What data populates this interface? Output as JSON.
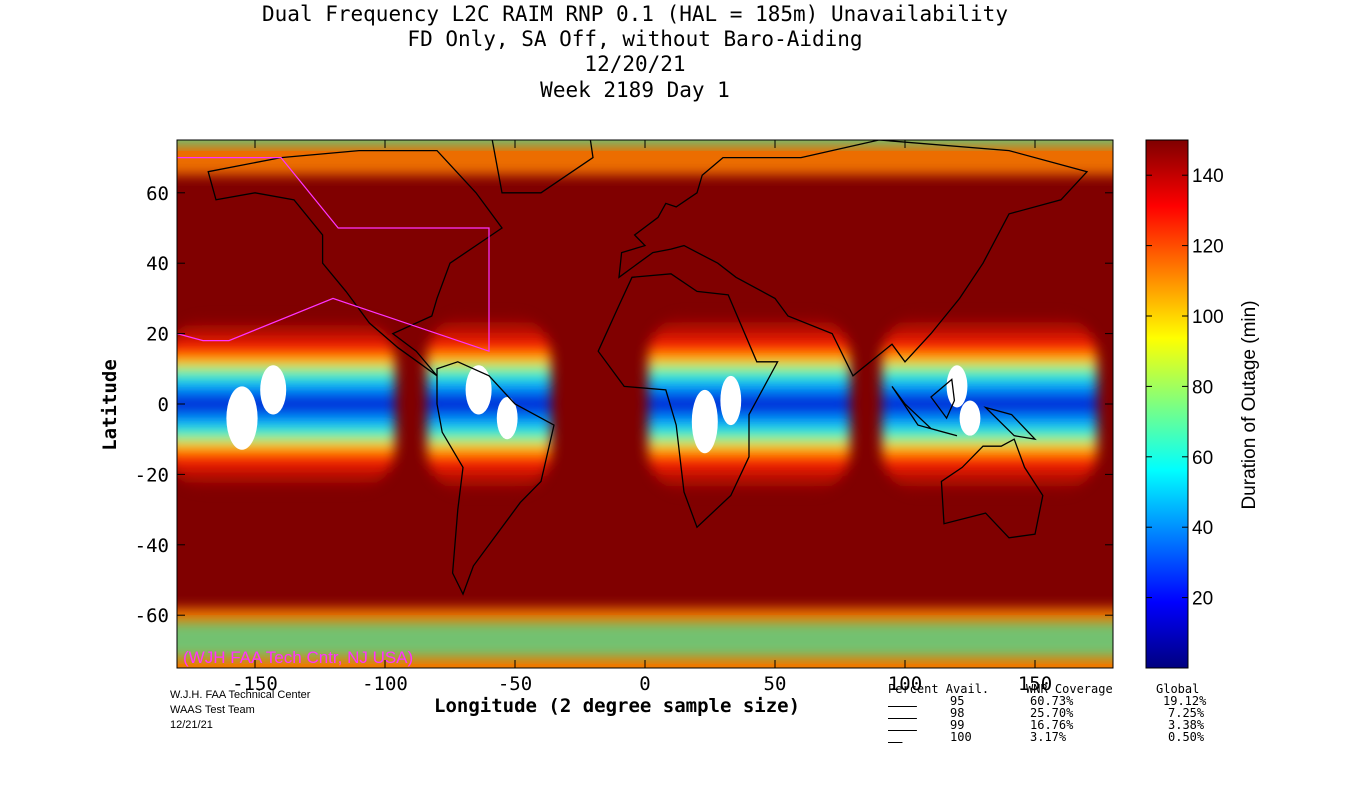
{
  "chart_data": {
    "type": "heatmap",
    "title": [
      "Dual Frequency L2C RAIM RNP 0.1 (HAL = 185m) Unavailability",
      "FD Only, SA Off, without Baro-Aiding",
      "12/20/21",
      "Week 2189 Day 1"
    ],
    "xlabel": "Longitude (2 degree sample size)",
    "ylabel": "Latitude",
    "colorbar_label": "Duration of Outage (min)",
    "xlim": [
      -180,
      180
    ],
    "ylim": [
      -75,
      75
    ],
    "x_ticks": [
      -150,
      -100,
      -50,
      0,
      50,
      100,
      150
    ],
    "y_ticks": [
      60,
      40,
      20,
      0,
      -20,
      -40,
      -60
    ],
    "colorbar_range": [
      0,
      150
    ],
    "colorbar_ticks": [
      140,
      120,
      100,
      80,
      60,
      40,
      20
    ],
    "colormap": "jet",
    "grid": false,
    "low_outage_bands": [
      {
        "lon_min": -180,
        "lon_max": -100,
        "lat_min": -16,
        "lat_max": 16
      },
      {
        "lon_min": -80,
        "lon_max": -40,
        "lat_min": -17,
        "lat_max": 17
      },
      {
        "lon_min": 5,
        "lon_max": 75,
        "lat_min": -17,
        "lat_max": 17
      },
      {
        "lon_min": 95,
        "lon_max": 170,
        "lat_min": -17,
        "lat_max": 17
      }
    ]
  },
  "watermark": "(WJH FAA Tech Cntr, NJ USA)",
  "footer_left": [
    "W.J.H. FAA Technical Center",
    "WAAS Test Team",
    "12/21/21"
  ],
  "stats": {
    "headers": [
      "Percent Avail.",
      "WNR Coverage",
      "Global"
    ],
    "rows": [
      [
        "95",
        "60.73%",
        "19.12%"
      ],
      [
        "98",
        "25.70%",
        "7.25%"
      ],
      [
        "99",
        "16.76%",
        "3.38%"
      ],
      [
        "100",
        "3.17%",
        "0.50%"
      ]
    ]
  },
  "colors": {
    "max_outage": "#800000",
    "coastline": "#000000",
    "wnr_boundary": "#ff33ff",
    "holes": "#ffffff"
  }
}
